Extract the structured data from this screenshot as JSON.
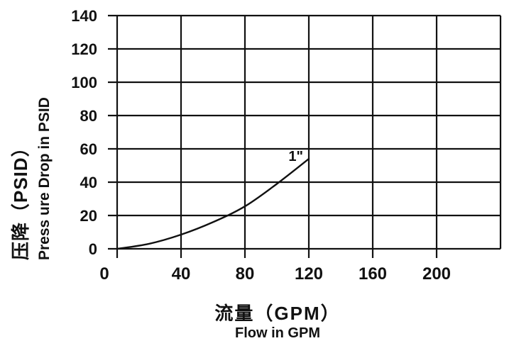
{
  "figure": {
    "background": "#ffffff",
    "ink_color": "#111111"
  },
  "chart_data": {
    "type": "line",
    "title": "",
    "grid": true,
    "legend_position": "none",
    "x_axis": {
      "title_cn": "流量（GPM）",
      "title_en": "Flow in GPM",
      "range": [
        0,
        240
      ],
      "gridline_values": [
        0,
        40,
        80,
        120,
        160,
        200,
        240
      ],
      "tick_values": [
        0,
        40,
        80,
        120,
        160,
        200
      ],
      "tick_labels": [
        "0",
        "40",
        "80",
        "120",
        "160",
        "200"
      ]
    },
    "y_axis": {
      "title_cn": "压降（PSID）",
      "title_en": "Press ure Drop in PSID",
      "range": [
        0,
        140
      ],
      "gridline_values": [
        0,
        20,
        40,
        60,
        80,
        100,
        120,
        140
      ],
      "tick_values": [
        0,
        20,
        40,
        60,
        80,
        100,
        120,
        140
      ],
      "tick_labels": [
        "0",
        "20",
        "40",
        "60",
        "80",
        "100",
        "120",
        "140"
      ]
    },
    "series": [
      {
        "name": "1\"",
        "annotation": "1\"",
        "points": [
          [
            0,
            0
          ],
          [
            20,
            3
          ],
          [
            40,
            8.5
          ],
          [
            60,
            16
          ],
          [
            80,
            25.5
          ],
          [
            100,
            39
          ],
          [
            120,
            54
          ]
        ]
      }
    ]
  }
}
